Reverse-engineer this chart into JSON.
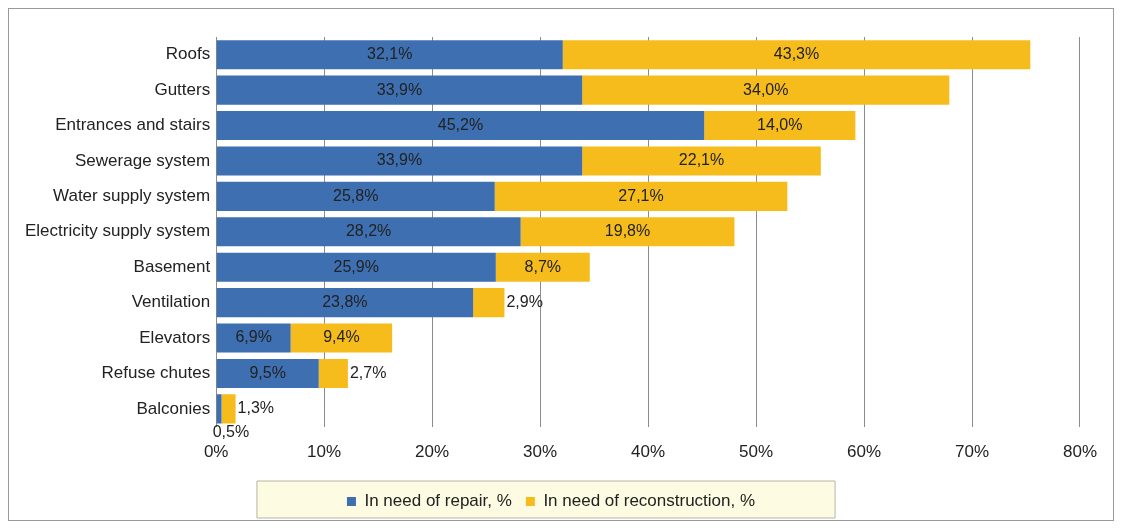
{
  "chart_data": {
    "type": "bar",
    "orientation": "horizontal",
    "stacked": true,
    "categories": [
      "Roofs",
      "Gutters",
      "Entrances and stairs",
      "Sewerage system",
      "Water supply system",
      "Electricity supply system",
      "Basement",
      "Ventilation",
      "Elevators",
      "Refuse chutes",
      "Balconies"
    ],
    "series": [
      {
        "name": "In need of repair, %",
        "color": "#3d6fb1",
        "values": [
          32.1,
          33.9,
          45.2,
          33.9,
          25.8,
          28.2,
          25.9,
          23.8,
          6.9,
          9.5,
          0.5
        ],
        "value_labels": [
          "32,1%",
          "33,9%",
          "45,2%",
          "33,9%",
          "25,8%",
          "28,2%",
          "25,9%",
          "23,8%",
          "6,9%",
          "9,5%",
          "0,5%"
        ]
      },
      {
        "name": "In need of reconstruction, %",
        "color": "#f6bc1c",
        "values": [
          43.3,
          34.0,
          14.0,
          22.1,
          27.1,
          19.8,
          8.7,
          2.9,
          9.4,
          2.7,
          1.3
        ],
        "value_labels": [
          "43,3%",
          "34,0%",
          "14,0%",
          "22,1%",
          "27,1%",
          "19,8%",
          "8,7%",
          "2,9%",
          "9,4%",
          "2,7%",
          "1,3%"
        ]
      }
    ],
    "xlim": [
      0,
      80
    ],
    "xticks": [
      {
        "value": 0,
        "label": "0%"
      },
      {
        "value": 10,
        "label": "10%"
      },
      {
        "value": 20,
        "label": "20%"
      },
      {
        "value": 30,
        "label": "30%"
      },
      {
        "value": 40,
        "label": "40%"
      },
      {
        "value": 50,
        "label": "50%"
      },
      {
        "value": 60,
        "label": "60%"
      },
      {
        "value": 70,
        "label": "70%"
      },
      {
        "value": 80,
        "label": "80%"
      }
    ],
    "grid": "x",
    "legend": "bottom"
  }
}
